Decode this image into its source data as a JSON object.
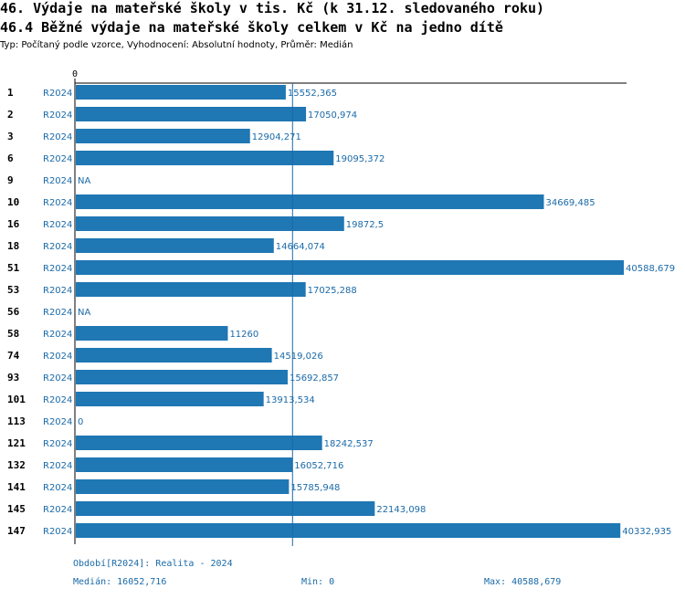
{
  "header": {
    "title": "46. Výdaje na mateřské školy v tis. Kč (k 31.12. sledovaného roku)",
    "subtitle": "46.4 Běžné výdaje na mateřské školy celkem v Kč na jedno dítě",
    "type_line": "Typ: Počítaný podle vzorce, Vyhodnocení: Absolutní hodnoty, Průměr: Medián"
  },
  "colors": {
    "bar": "#1f77b4",
    "label": "#1a6aa8",
    "axis": "#000000"
  },
  "chart_data": {
    "type": "bar",
    "orientation": "horizontal",
    "axis_zero_label": "0",
    "xlim": [
      0,
      40588.679
    ],
    "median": 16052.716,
    "rows": [
      {
        "id": "1",
        "period": "R2024",
        "value": 15552.365,
        "label": "15552,365"
      },
      {
        "id": "2",
        "period": "R2024",
        "value": 17050.974,
        "label": "17050,974"
      },
      {
        "id": "3",
        "period": "R2024",
        "value": 12904.271,
        "label": "12904,271"
      },
      {
        "id": "6",
        "period": "R2024",
        "value": 19095.372,
        "label": "19095,372"
      },
      {
        "id": "9",
        "period": "R2024",
        "value": null,
        "label": "NA"
      },
      {
        "id": "10",
        "period": "R2024",
        "value": 34669.485,
        "label": "34669,485"
      },
      {
        "id": "16",
        "period": "R2024",
        "value": 19872.5,
        "label": "19872,5"
      },
      {
        "id": "18",
        "period": "R2024",
        "value": 14664.074,
        "label": "14664,074"
      },
      {
        "id": "51",
        "period": "R2024",
        "value": 40588.679,
        "label": "40588,679"
      },
      {
        "id": "53",
        "period": "R2024",
        "value": 17025.288,
        "label": "17025,288"
      },
      {
        "id": "56",
        "period": "R2024",
        "value": null,
        "label": "NA"
      },
      {
        "id": "58",
        "period": "R2024",
        "value": 11260,
        "label": "11260"
      },
      {
        "id": "74",
        "period": "R2024",
        "value": 14519.026,
        "label": "14519,026"
      },
      {
        "id": "93",
        "period": "R2024",
        "value": 15692.857,
        "label": "15692,857"
      },
      {
        "id": "101",
        "period": "R2024",
        "value": 13913.534,
        "label": "13913,534"
      },
      {
        "id": "113",
        "period": "R2024",
        "value": 0,
        "label": "0"
      },
      {
        "id": "121",
        "period": "R2024",
        "value": 18242.537,
        "label": "18242,537"
      },
      {
        "id": "132",
        "period": "R2024",
        "value": 16052.716,
        "label": "16052,716"
      },
      {
        "id": "141",
        "period": "R2024",
        "value": 15785.948,
        "label": "15785,948"
      },
      {
        "id": "145",
        "period": "R2024",
        "value": 22143.098,
        "label": "22143,098"
      },
      {
        "id": "147",
        "period": "R2024",
        "value": 40332.935,
        "label": "40332,935"
      }
    ]
  },
  "footer": {
    "period_note": "Období[R2024]: Realita - 2024",
    "median": "Medián: 16052,716",
    "min": "Min: 0",
    "max": "Max: 40588,679"
  }
}
